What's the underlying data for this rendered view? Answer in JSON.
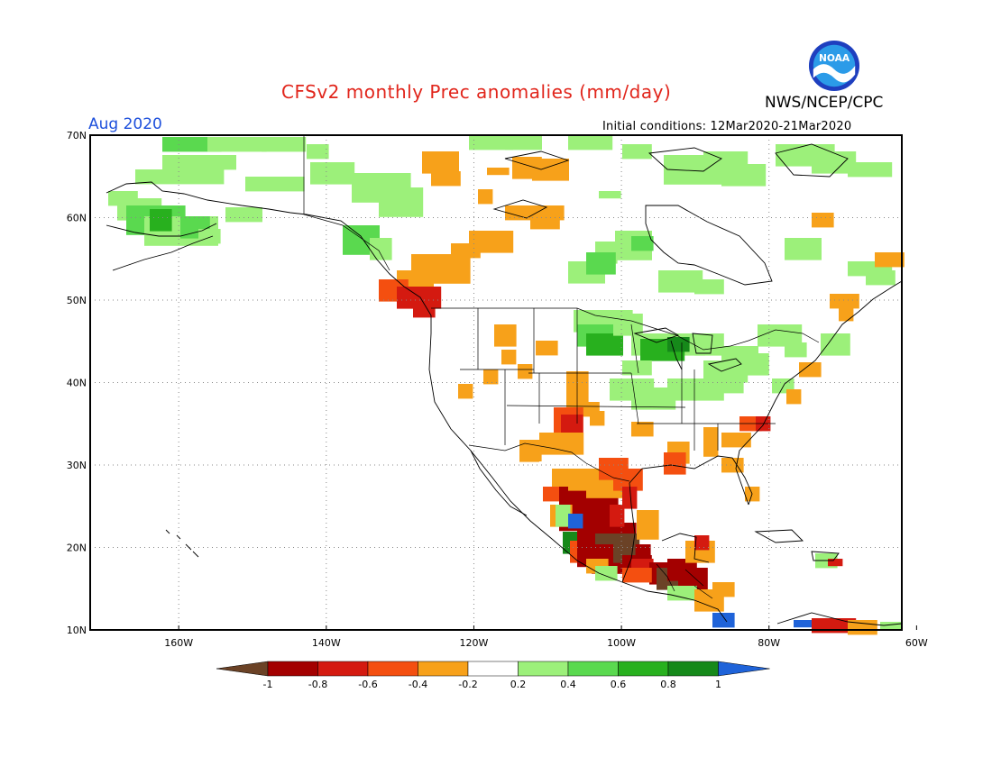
{
  "header": {
    "title": "CFSv2 monthly Prec anomalies (mm/day)",
    "valid_month": "Aug 2020",
    "initial_conditions": "Initial conditions: 12Mar2020-21Mar2020",
    "agency": "NWS/NCEP/CPC",
    "logo_text": "NOAA"
  },
  "map": {
    "lon_range": [
      -172,
      -62
    ],
    "lat_range": [
      10,
      70
    ],
    "lon_ticks": [
      "160W",
      "140W",
      "120W",
      "100W",
      "80W",
      "60W"
    ],
    "lat_ticks": [
      "70N",
      "60N",
      "50N",
      "40N",
      "30N",
      "20N",
      "10N"
    ],
    "grid_style": "dotted"
  },
  "colorbar": {
    "labels": [
      "-1",
      "-0.8",
      "-0.6",
      "-0.4",
      "-0.2",
      "0.2",
      "0.4",
      "0.6",
      "0.8",
      "1"
    ],
    "colors": [
      "#6b4226",
      "#a30000",
      "#d41a10",
      "#f44f10",
      "#f7a11a",
      "#ffffff",
      "#9cf07a",
      "#5ad94f",
      "#28b01e",
      "#16891a",
      "#1f63d9"
    ]
  }
}
